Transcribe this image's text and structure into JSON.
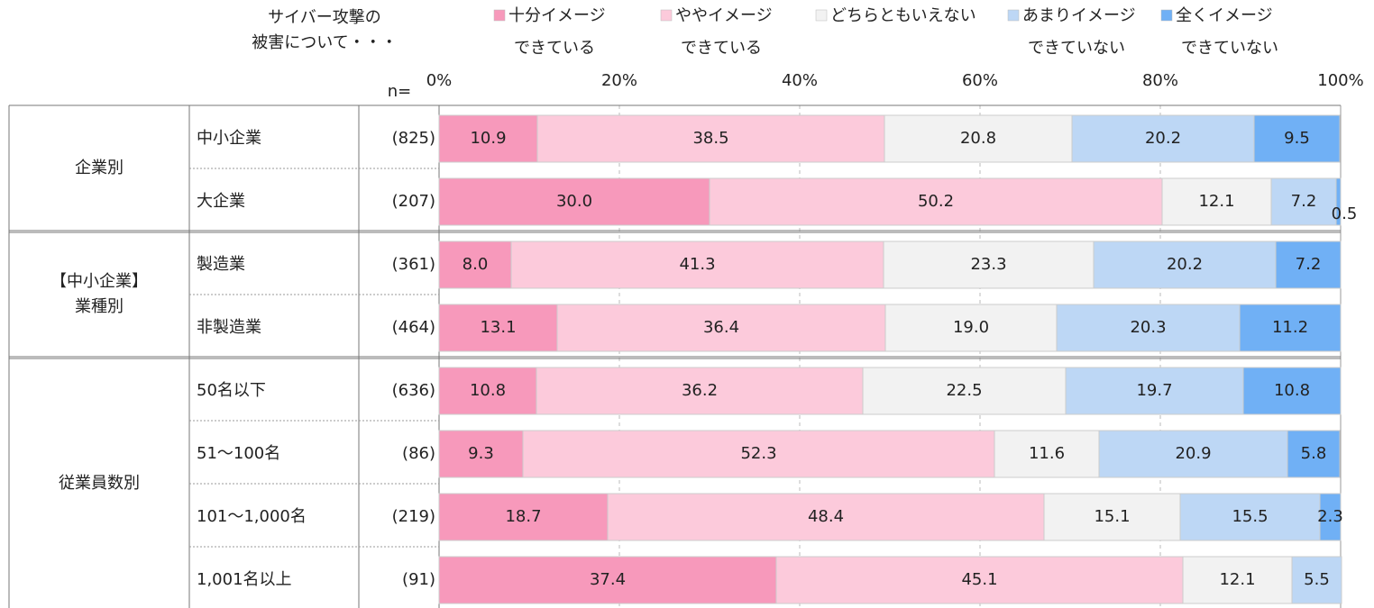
{
  "chart_data": {
    "type": "stacked-bar-horizontal",
    "title": "サイバー攻撃の\n被害について・・・",
    "n_header": "n=",
    "groups": [
      {
        "label": "企業別",
        "categories": [
          "中小企業",
          "大企業"
        ],
        "n": [
          "(825)",
          "(207)"
        ]
      },
      {
        "label": "【中小企業】\n業種別",
        "categories": [
          "製造業",
          "非製造業"
        ],
        "n": [
          "(361)",
          "(464)"
        ]
      },
      {
        "label": "従業員数別",
        "categories": [
          "50名以下",
          "51～100名",
          "101～1,000名",
          "1,001名以上"
        ],
        "n": [
          "(636)",
          "(86)",
          "(219)",
          "(91)"
        ]
      }
    ],
    "series": [
      {
        "name": "十分イメージ\nできている",
        "color": "#f799bb",
        "values": [
          10.9,
          30.0,
          8.0,
          13.1,
          10.8,
          9.3,
          18.7,
          37.4
        ],
        "value_labels": [
          "10.9",
          "30.0",
          "8.0",
          "13.1",
          "10.8",
          "9.3",
          "18.7",
          "37.4"
        ]
      },
      {
        "name": "ややイメージ\nできている",
        "color": "#fccadb",
        "values": [
          38.5,
          50.2,
          41.3,
          36.4,
          36.2,
          52.3,
          48.4,
          45.1
        ],
        "value_labels": [
          "38.5",
          "50.2",
          "41.3",
          "36.4",
          "36.2",
          "52.3",
          "48.4",
          "45.1"
        ]
      },
      {
        "name": "どちらともいえない",
        "color": "#f2f2f2",
        "values": [
          20.8,
          12.1,
          23.3,
          19.0,
          22.5,
          11.6,
          15.1,
          12.1
        ],
        "value_labels": [
          "20.8",
          "12.1",
          "23.3",
          "19.0",
          "22.5",
          "11.6",
          "15.1",
          "12.1"
        ]
      },
      {
        "name": "あまりイメージ\nできていない",
        "color": "#bdd7f5",
        "values": [
          20.2,
          7.2,
          20.2,
          20.3,
          19.7,
          20.9,
          15.5,
          5.5
        ],
        "value_labels": [
          "20.2",
          "7.2",
          "20.2",
          "20.3",
          "19.7",
          "20.9",
          "15.5",
          "5.5"
        ]
      },
      {
        "name": "全くイメージ\nできていない",
        "color": "#70b0f5",
        "values": [
          9.5,
          0.5,
          7.2,
          11.2,
          10.8,
          5.8,
          2.3,
          null
        ],
        "value_labels": [
          "9.5",
          "0.5",
          "7.2",
          "11.2",
          "10.8",
          "5.8",
          "2.3",
          null
        ]
      }
    ],
    "xlim": [
      0,
      100
    ],
    "xticks": [
      {
        "value": 0,
        "label": "0%"
      },
      {
        "value": 20,
        "label": "20%"
      },
      {
        "value": 40,
        "label": "40%"
      },
      {
        "value": 60,
        "label": "60%"
      },
      {
        "value": 80,
        "label": "80%"
      },
      {
        "value": 100,
        "label": "100%"
      }
    ],
    "grid": true
  }
}
